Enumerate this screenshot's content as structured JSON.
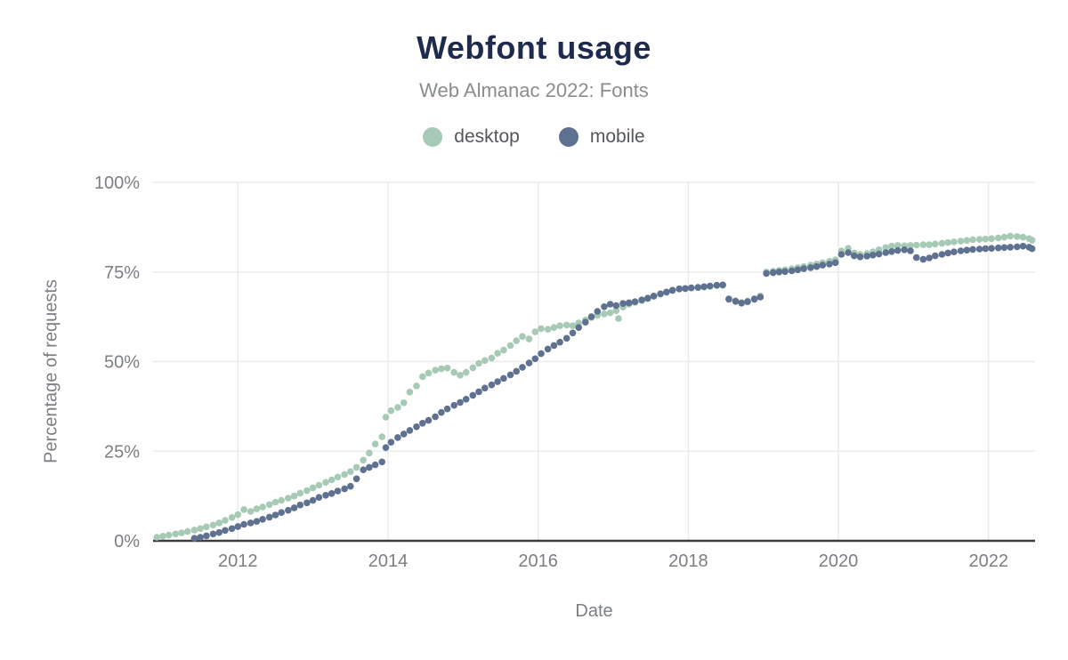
{
  "header": {
    "title": "Webfont usage",
    "subtitle": "Web Almanac 2022: Fonts",
    "title_color": "#1f2b4e",
    "subtitle_color": "#8a8d90"
  },
  "legend": {
    "items": [
      {
        "label": "desktop",
        "color": "#a6cab5"
      },
      {
        "label": "mobile",
        "color": "#5e7190"
      }
    ]
  },
  "colors": {
    "grid": "#ebecec",
    "axis_line": "#3b3c3e",
    "tick_text": "#7b7f83"
  },
  "chart_data": {
    "type": "scatter",
    "title": "Webfont usage",
    "subtitle": "Web Almanac 2022: Fonts",
    "xlabel": "Date",
    "ylabel": "Percentage of requests",
    "xlim": [
      2010.87,
      2022.62
    ],
    "ylim": [
      0,
      100
    ],
    "grid": true,
    "legend_position": "top",
    "x_ticks": [
      {
        "value": 2012,
        "label": "2012"
      },
      {
        "value": 2014,
        "label": "2014"
      },
      {
        "value": 2016,
        "label": "2016"
      },
      {
        "value": 2018,
        "label": "2018"
      },
      {
        "value": 2020,
        "label": "2020"
      },
      {
        "value": 2022,
        "label": "2022"
      }
    ],
    "y_ticks": [
      {
        "value": 0,
        "label": "0%"
      },
      {
        "value": 25,
        "label": "25%"
      },
      {
        "value": 50,
        "label": "50%"
      },
      {
        "value": 75,
        "label": "75%"
      },
      {
        "value": 100,
        "label": "100%"
      }
    ],
    "series": [
      {
        "name": "desktop",
        "color": "#a6cab5",
        "points": [
          [
            2010.92,
            1.0
          ],
          [
            2011.0,
            1.3
          ],
          [
            2011.08,
            1.6
          ],
          [
            2011.17,
            1.9
          ],
          [
            2011.25,
            2.2
          ],
          [
            2011.33,
            2.6
          ],
          [
            2011.42,
            3.0
          ],
          [
            2011.5,
            3.4
          ],
          [
            2011.58,
            3.9
          ],
          [
            2011.67,
            4.4
          ],
          [
            2011.75,
            5.0
          ],
          [
            2011.83,
            5.7
          ],
          [
            2011.92,
            6.5
          ],
          [
            2012.0,
            7.3
          ],
          [
            2012.08,
            8.7
          ],
          [
            2012.17,
            8.2
          ],
          [
            2012.25,
            8.9
          ],
          [
            2012.33,
            9.4
          ],
          [
            2012.42,
            10.1
          ],
          [
            2012.5,
            10.8
          ],
          [
            2012.58,
            11.3
          ],
          [
            2012.67,
            11.9
          ],
          [
            2012.75,
            12.5
          ],
          [
            2012.83,
            13.3
          ],
          [
            2012.92,
            14.0
          ],
          [
            2013.0,
            14.8
          ],
          [
            2013.08,
            15.5
          ],
          [
            2013.17,
            16.3
          ],
          [
            2013.25,
            17.0
          ],
          [
            2013.33,
            17.8
          ],
          [
            2013.42,
            18.5
          ],
          [
            2013.5,
            19.3
          ],
          [
            2013.58,
            20.5
          ],
          [
            2013.67,
            22.5
          ],
          [
            2013.75,
            24.5
          ],
          [
            2013.83,
            27.0
          ],
          [
            2013.92,
            29.0
          ],
          [
            2013.97,
            34.5
          ],
          [
            2014.04,
            36.3
          ],
          [
            2014.13,
            37.2
          ],
          [
            2014.21,
            38.5
          ],
          [
            2014.29,
            41.5
          ],
          [
            2014.38,
            43.2
          ],
          [
            2014.46,
            45.8
          ],
          [
            2014.54,
            46.8
          ],
          [
            2014.63,
            47.6
          ],
          [
            2014.71,
            48.0
          ],
          [
            2014.79,
            48.2
          ],
          [
            2014.88,
            47.0
          ],
          [
            2014.96,
            46.2
          ],
          [
            2015.04,
            47.0
          ],
          [
            2015.13,
            48.3
          ],
          [
            2015.21,
            49.5
          ],
          [
            2015.29,
            50.3
          ],
          [
            2015.38,
            51.0
          ],
          [
            2015.46,
            52.3
          ],
          [
            2015.54,
            53.2
          ],
          [
            2015.63,
            54.5
          ],
          [
            2015.71,
            55.8
          ],
          [
            2015.79,
            57.0
          ],
          [
            2015.88,
            56.3
          ],
          [
            2015.96,
            58.3
          ],
          [
            2016.04,
            59.2
          ],
          [
            2016.13,
            59.0
          ],
          [
            2016.21,
            59.5
          ],
          [
            2016.29,
            60.0
          ],
          [
            2016.38,
            60.2
          ],
          [
            2016.46,
            60.0
          ],
          [
            2016.54,
            60.8
          ],
          [
            2016.63,
            61.6
          ],
          [
            2016.71,
            62.3
          ],
          [
            2016.79,
            62.9
          ],
          [
            2016.88,
            63.3
          ],
          [
            2016.96,
            63.6
          ],
          [
            2017.04,
            64.2
          ],
          [
            2017.07,
            62.0
          ],
          [
            2017.13,
            65.2
          ],
          [
            2017.21,
            66.0
          ],
          [
            2017.29,
            66.5
          ],
          [
            2017.38,
            67.0
          ],
          [
            2017.46,
            67.5
          ],
          [
            2017.54,
            68.2
          ],
          [
            2017.63,
            68.8
          ],
          [
            2017.71,
            69.3
          ],
          [
            2017.79,
            69.8
          ],
          [
            2017.88,
            70.2
          ],
          [
            2017.96,
            70.3
          ],
          [
            2018.04,
            70.5
          ],
          [
            2018.13,
            70.6
          ],
          [
            2018.21,
            70.8
          ],
          [
            2018.29,
            71.0
          ],
          [
            2018.38,
            71.2
          ],
          [
            2018.46,
            71.3
          ],
          [
            2018.54,
            67.6
          ],
          [
            2018.63,
            67.0
          ],
          [
            2018.71,
            66.5
          ],
          [
            2018.79,
            66.9
          ],
          [
            2018.88,
            67.6
          ],
          [
            2018.96,
            68.3
          ],
          [
            2019.04,
            75.0
          ],
          [
            2019.13,
            75.2
          ],
          [
            2019.21,
            75.4
          ],
          [
            2019.29,
            75.6
          ],
          [
            2019.38,
            75.9
          ],
          [
            2019.46,
            76.2
          ],
          [
            2019.54,
            76.5
          ],
          [
            2019.63,
            76.9
          ],
          [
            2019.71,
            77.2
          ],
          [
            2019.79,
            77.6
          ],
          [
            2019.88,
            78.0
          ],
          [
            2019.96,
            78.4
          ],
          [
            2020.04,
            80.9
          ],
          [
            2020.13,
            81.6
          ],
          [
            2020.21,
            80.3
          ],
          [
            2020.29,
            79.9
          ],
          [
            2020.38,
            80.1
          ],
          [
            2020.46,
            80.6
          ],
          [
            2020.54,
            81.2
          ],
          [
            2020.63,
            81.8
          ],
          [
            2020.71,
            82.2
          ],
          [
            2020.79,
            82.4
          ],
          [
            2020.88,
            82.3
          ],
          [
            2020.96,
            82.4
          ],
          [
            2021.04,
            82.5
          ],
          [
            2021.13,
            82.6
          ],
          [
            2021.21,
            82.6
          ],
          [
            2021.29,
            82.8
          ],
          [
            2021.38,
            83.0
          ],
          [
            2021.46,
            83.2
          ],
          [
            2021.54,
            83.4
          ],
          [
            2021.63,
            83.6
          ],
          [
            2021.71,
            83.8
          ],
          [
            2021.79,
            84.0
          ],
          [
            2021.88,
            84.1
          ],
          [
            2021.96,
            84.2
          ],
          [
            2022.04,
            84.3
          ],
          [
            2022.13,
            84.5
          ],
          [
            2022.21,
            84.7
          ],
          [
            2022.29,
            85.0
          ],
          [
            2022.38,
            84.9
          ],
          [
            2022.46,
            84.7
          ],
          [
            2022.54,
            84.3
          ],
          [
            2022.58,
            83.9
          ]
        ]
      },
      {
        "name": "mobile",
        "color": "#5e7190",
        "points": [
          [
            2011.42,
            0.7
          ],
          [
            2011.5,
            1.0
          ],
          [
            2011.58,
            1.4
          ],
          [
            2011.67,
            1.9
          ],
          [
            2011.75,
            2.3
          ],
          [
            2011.83,
            2.9
          ],
          [
            2011.92,
            3.4
          ],
          [
            2012.0,
            4.0
          ],
          [
            2012.08,
            4.6
          ],
          [
            2012.17,
            5.0
          ],
          [
            2012.25,
            5.4
          ],
          [
            2012.33,
            6.0
          ],
          [
            2012.42,
            6.6
          ],
          [
            2012.5,
            7.2
          ],
          [
            2012.58,
            7.9
          ],
          [
            2012.67,
            8.5
          ],
          [
            2012.75,
            9.2
          ],
          [
            2012.83,
            10.0
          ],
          [
            2012.92,
            10.6
          ],
          [
            2013.0,
            11.3
          ],
          [
            2013.08,
            12.1
          ],
          [
            2013.17,
            12.7
          ],
          [
            2013.25,
            13.2
          ],
          [
            2013.33,
            13.9
          ],
          [
            2013.42,
            14.5
          ],
          [
            2013.5,
            15.2
          ],
          [
            2013.58,
            17.3
          ],
          [
            2013.67,
            19.8
          ],
          [
            2013.75,
            20.5
          ],
          [
            2013.83,
            21.2
          ],
          [
            2013.92,
            22.0
          ],
          [
            2013.97,
            26.0
          ],
          [
            2014.04,
            27.5
          ],
          [
            2014.13,
            28.8
          ],
          [
            2014.21,
            29.8
          ],
          [
            2014.29,
            30.8
          ],
          [
            2014.38,
            31.8
          ],
          [
            2014.46,
            32.8
          ],
          [
            2014.54,
            33.6
          ],
          [
            2014.63,
            34.6
          ],
          [
            2014.71,
            35.8
          ],
          [
            2014.79,
            36.8
          ],
          [
            2014.88,
            37.8
          ],
          [
            2014.96,
            38.6
          ],
          [
            2015.04,
            39.5
          ],
          [
            2015.13,
            40.6
          ],
          [
            2015.21,
            41.6
          ],
          [
            2015.29,
            42.6
          ],
          [
            2015.38,
            43.5
          ],
          [
            2015.46,
            44.4
          ],
          [
            2015.54,
            45.3
          ],
          [
            2015.63,
            46.3
          ],
          [
            2015.71,
            47.3
          ],
          [
            2015.79,
            48.4
          ],
          [
            2015.88,
            49.6
          ],
          [
            2015.96,
            50.8
          ],
          [
            2016.04,
            52.2
          ],
          [
            2016.13,
            53.5
          ],
          [
            2016.21,
            54.5
          ],
          [
            2016.29,
            55.4
          ],
          [
            2016.38,
            56.5
          ],
          [
            2016.46,
            58.0
          ],
          [
            2016.54,
            59.5
          ],
          [
            2016.63,
            61.0
          ],
          [
            2016.71,
            62.5
          ],
          [
            2016.79,
            64.0
          ],
          [
            2016.88,
            65.3
          ],
          [
            2016.96,
            66.0
          ],
          [
            2017.04,
            65.6
          ],
          [
            2017.13,
            66.2
          ],
          [
            2017.21,
            66.4
          ],
          [
            2017.29,
            66.7
          ],
          [
            2017.38,
            67.2
          ],
          [
            2017.46,
            67.7
          ],
          [
            2017.54,
            68.3
          ],
          [
            2017.63,
            68.9
          ],
          [
            2017.71,
            69.4
          ],
          [
            2017.79,
            69.9
          ],
          [
            2017.88,
            70.3
          ],
          [
            2017.96,
            70.4
          ],
          [
            2018.04,
            70.6
          ],
          [
            2018.13,
            70.7
          ],
          [
            2018.21,
            70.9
          ],
          [
            2018.29,
            71.1
          ],
          [
            2018.38,
            71.3
          ],
          [
            2018.46,
            71.4
          ],
          [
            2018.54,
            67.4
          ],
          [
            2018.63,
            66.8
          ],
          [
            2018.71,
            66.3
          ],
          [
            2018.79,
            66.7
          ],
          [
            2018.88,
            67.4
          ],
          [
            2018.96,
            68.0
          ],
          [
            2019.04,
            74.6
          ],
          [
            2019.13,
            74.8
          ],
          [
            2019.21,
            75.0
          ],
          [
            2019.29,
            75.1
          ],
          [
            2019.38,
            75.3
          ],
          [
            2019.46,
            75.6
          ],
          [
            2019.54,
            75.9
          ],
          [
            2019.63,
            76.2
          ],
          [
            2019.71,
            76.5
          ],
          [
            2019.79,
            76.9
          ],
          [
            2019.88,
            77.2
          ],
          [
            2019.96,
            77.6
          ],
          [
            2020.04,
            79.9
          ],
          [
            2020.13,
            80.4
          ],
          [
            2020.21,
            79.5
          ],
          [
            2020.29,
            79.2
          ],
          [
            2020.38,
            79.4
          ],
          [
            2020.46,
            79.7
          ],
          [
            2020.54,
            80.0
          ],
          [
            2020.63,
            80.4
          ],
          [
            2020.71,
            80.7
          ],
          [
            2020.79,
            81.0
          ],
          [
            2020.88,
            81.2
          ],
          [
            2020.96,
            80.9
          ],
          [
            2021.04,
            79.0
          ],
          [
            2021.13,
            78.5
          ],
          [
            2021.21,
            78.9
          ],
          [
            2021.29,
            79.5
          ],
          [
            2021.38,
            79.9
          ],
          [
            2021.46,
            80.3
          ],
          [
            2021.54,
            80.6
          ],
          [
            2021.63,
            80.9
          ],
          [
            2021.71,
            81.1
          ],
          [
            2021.79,
            81.3
          ],
          [
            2021.88,
            81.4
          ],
          [
            2021.96,
            81.5
          ],
          [
            2022.04,
            81.6
          ],
          [
            2022.13,
            81.7
          ],
          [
            2022.21,
            81.8
          ],
          [
            2022.29,
            81.9
          ],
          [
            2022.38,
            82.0
          ],
          [
            2022.46,
            82.2
          ],
          [
            2022.54,
            81.9
          ],
          [
            2022.58,
            81.5
          ]
        ]
      }
    ]
  }
}
